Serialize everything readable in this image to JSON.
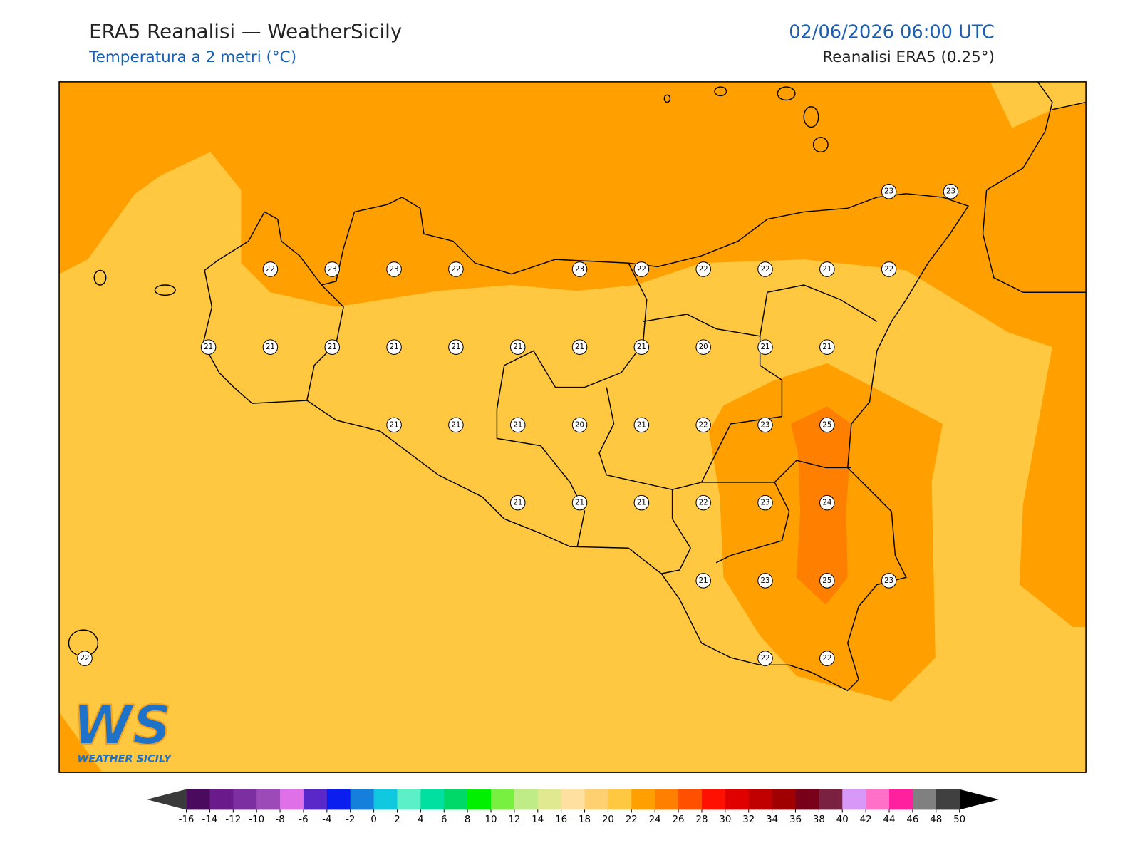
{
  "header": {
    "title": "ERA5 Reanalisi — WeatherSicily",
    "subtitle": "Temperatura a 2 metri (°C)",
    "datetime": "02/06/2026 06:00 UTC",
    "source": "Reanalisi ERA5 (0.25°)"
  },
  "map": {
    "background_color": "#ffc840",
    "station_grid": [
      [
        null,
        null,
        null,
        null,
        null,
        null,
        null,
        null,
        null,
        null,
        null,
        null,
        null,
        23,
        23
      ],
      [
        null,
        null,
        null,
        22,
        23,
        23,
        22,
        null,
        23,
        22,
        22,
        22,
        21,
        22,
        null
      ],
      [
        null,
        null,
        21,
        21,
        21,
        21,
        21,
        21,
        21,
        21,
        20,
        21,
        21,
        null,
        null
      ],
      [
        null,
        null,
        null,
        null,
        null,
        21,
        21,
        21,
        20,
        21,
        22,
        23,
        25,
        null,
        null
      ],
      [
        null,
        null,
        null,
        null,
        null,
        null,
        null,
        21,
        21,
        21,
        22,
        23,
        24,
        null,
        null
      ],
      [
        null,
        null,
        null,
        null,
        null,
        null,
        null,
        null,
        null,
        null,
        21,
        23,
        25,
        23,
        null
      ],
      [
        22,
        null,
        null,
        null,
        null,
        null,
        null,
        null,
        null,
        null,
        null,
        22,
        22,
        null,
        null
      ]
    ]
  },
  "logo": {
    "mark": "WS",
    "text": "WEATHER SICILY"
  },
  "colorbar": {
    "ticks": [
      -16,
      -14,
      -12,
      -10,
      -8,
      -6,
      -4,
      -2,
      0,
      2,
      4,
      6,
      8,
      10,
      12,
      14,
      16,
      18,
      20,
      22,
      24,
      26,
      28,
      30,
      32,
      34,
      36,
      38,
      40,
      42,
      44,
      46,
      48,
      50
    ],
    "colors": [
      "#4a0a5e",
      "#6a1a8a",
      "#7b2fa0",
      "#9b4ab8",
      "#e070e8",
      "#5a28c8",
      "#0a1ef0",
      "#1480dc",
      "#10c8e0",
      "#5cf0c8",
      "#00e0a0",
      "#00d868",
      "#00f000",
      "#78f040",
      "#c0ec88",
      "#e0e890",
      "#ffe0a0",
      "#ffd070",
      "#ffc840",
      "#ffa000",
      "#ff8000",
      "#ff5000",
      "#ff1000",
      "#e00000",
      "#c00000",
      "#a00000",
      "#780018",
      "#7a2040",
      "#d898f8",
      "#ff70c8",
      "#ff20a0",
      "#808080",
      "#404040"
    ],
    "under_color": "#3a3a3a",
    "over_color": "#000000"
  }
}
